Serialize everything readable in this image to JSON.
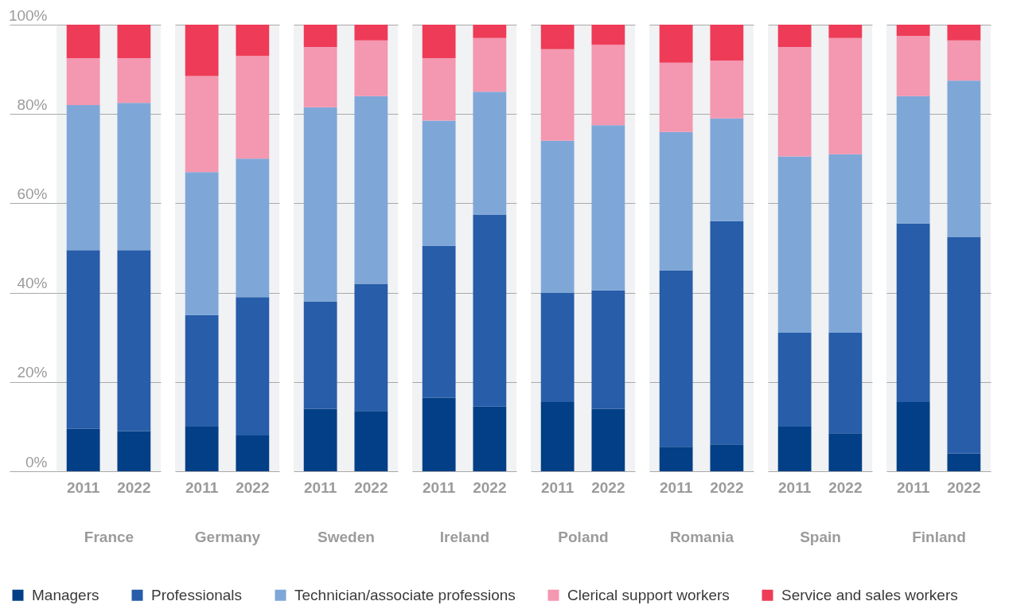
{
  "chart_data": [
    {
      "type": "bar",
      "stacked": true,
      "xlabel": "France",
      "categories": [
        "2011",
        "2022"
      ],
      "series": [
        {
          "name": "Managers",
          "color": "#023f86",
          "values": [
            9.5,
            9
          ]
        },
        {
          "name": "Professionals",
          "color": "#275da9",
          "values": [
            40,
            40.5
          ]
        },
        {
          "name": "Technician/associate professions",
          "color": "#7ea7d8",
          "values": [
            32.5,
            33
          ]
        },
        {
          "name": "Clerical support workers",
          "color": "#f497b0",
          "values": [
            10.5,
            10
          ]
        },
        {
          "name": "Service and sales workers",
          "color": "#ee3b57",
          "values": [
            7.5,
            7.5
          ]
        }
      ],
      "ylim": [
        0,
        100
      ],
      "yticks": [
        {
          "value": 0,
          "label": "0%"
        },
        {
          "value": 20,
          "label": "20%"
        },
        {
          "value": 40,
          "label": "40%"
        },
        {
          "value": 60,
          "label": "60%"
        },
        {
          "value": 80,
          "label": "80%"
        },
        {
          "value": 100,
          "label": "100%"
        }
      ],
      "grid": "y",
      "legend": "bottom"
    },
    {
      "type": "bar",
      "stacked": true,
      "xlabel": "Germany",
      "categories": [
        "2011",
        "2022"
      ],
      "series": [
        {
          "name": "Managers",
          "color": "#023f86",
          "values": [
            10,
            8
          ]
        },
        {
          "name": "Professionals",
          "color": "#275da9",
          "values": [
            25,
            31
          ]
        },
        {
          "name": "Technician/associate professions",
          "color": "#7ea7d8",
          "values": [
            32,
            31
          ]
        },
        {
          "name": "Clerical support workers",
          "color": "#f497b0",
          "values": [
            21.5,
            23
          ]
        },
        {
          "name": "Service and sales workers",
          "color": "#ee3b57",
          "values": [
            11.5,
            7
          ]
        }
      ],
      "ylim": [
        0,
        100
      ],
      "yticks": [
        0,
        20,
        40,
        60,
        80,
        100
      ],
      "grid": "y",
      "legend": "bottom",
      "tick_labels": "x"
    },
    {
      "type": "bar",
      "stacked": true,
      "xlabel": "Sweden",
      "categories": [
        "2011",
        "2022"
      ],
      "series": [
        {
          "name": "Managers",
          "color": "#023f86",
          "values": [
            14,
            13.5
          ]
        },
        {
          "name": "Professionals",
          "color": "#275da9",
          "values": [
            24,
            28.5
          ]
        },
        {
          "name": "Technician/associate professions",
          "color": "#7ea7d8",
          "values": [
            43.5,
            42
          ]
        },
        {
          "name": "Clerical support workers",
          "color": "#f497b0",
          "values": [
            13.5,
            12.5
          ]
        },
        {
          "name": "Service and sales workers",
          "color": "#ee3b57",
          "values": [
            5,
            3.5
          ]
        }
      ],
      "ylim": [
        0,
        100
      ],
      "yticks": [
        0,
        20,
        40,
        60,
        80,
        100
      ],
      "grid": "y",
      "legend": "bottom",
      "tick_labels": "x"
    },
    {
      "type": "bar",
      "stacked": true,
      "xlabel": "Ireland",
      "categories": [
        "2011",
        "2022"
      ],
      "series": [
        {
          "name": "Managers",
          "color": "#023f86",
          "values": [
            16.5,
            14.5
          ]
        },
        {
          "name": "Professionals",
          "color": "#275da9",
          "values": [
            34,
            43
          ]
        },
        {
          "name": "Technician/associate professions",
          "color": "#7ea7d8",
          "values": [
            28,
            27.5
          ]
        },
        {
          "name": "Clerical support workers",
          "color": "#f497b0",
          "values": [
            14,
            12
          ]
        },
        {
          "name": "Service and sales workers",
          "color": "#ee3b57",
          "values": [
            7.5,
            3
          ]
        }
      ],
      "ylim": [
        0,
        100
      ],
      "yticks": [
        0,
        20,
        40,
        60,
        80,
        100
      ],
      "grid": "y",
      "legend": "bottom",
      "tick_labels": "x"
    },
    {
      "type": "bar",
      "stacked": true,
      "xlabel": "Poland",
      "categories": [
        "2011",
        "2022"
      ],
      "series": [
        {
          "name": "Managers",
          "color": "#023f86",
          "values": [
            15.5,
            14
          ]
        },
        {
          "name": "Professionals",
          "color": "#275da9",
          "values": [
            24.5,
            26.5
          ]
        },
        {
          "name": "Technician/associate professions",
          "color": "#7ea7d8",
          "values": [
            34,
            37
          ]
        },
        {
          "name": "Clerical support workers",
          "color": "#f497b0",
          "values": [
            20.5,
            18
          ]
        },
        {
          "name": "Service and sales workers",
          "color": "#ee3b57",
          "values": [
            5.5,
            4.5
          ]
        }
      ],
      "ylim": [
        0,
        100
      ],
      "yticks": [
        0,
        20,
        40,
        60,
        80,
        100
      ],
      "grid": "y",
      "legend": "bottom",
      "tick_labels": "x"
    },
    {
      "type": "bar",
      "stacked": true,
      "xlabel": "Romania",
      "categories": [
        "2011",
        "2022"
      ],
      "series": [
        {
          "name": "Managers",
          "color": "#023f86",
          "values": [
            5.5,
            6
          ]
        },
        {
          "name": "Professionals",
          "color": "#275da9",
          "values": [
            39.5,
            50
          ]
        },
        {
          "name": "Technician/associate professions",
          "color": "#7ea7d8",
          "values": [
            31,
            23
          ]
        },
        {
          "name": "Clerical support workers",
          "color": "#f497b0",
          "values": [
            15.5,
            13
          ]
        },
        {
          "name": "Service and sales workers",
          "color": "#ee3b57",
          "values": [
            8.5,
            8
          ]
        }
      ],
      "ylim": [
        0,
        100
      ],
      "yticks": [
        0,
        20,
        40,
        60,
        80,
        100
      ],
      "grid": "y",
      "legend": "bottom",
      "tick_labels": "x"
    },
    {
      "type": "bar",
      "stacked": true,
      "xlabel": "Spain",
      "categories": [
        "2011",
        "2022"
      ],
      "series": [
        {
          "name": "Managers",
          "color": "#023f86",
          "values": [
            10,
            8.5
          ]
        },
        {
          "name": "Professionals",
          "color": "#275da9",
          "values": [
            21,
            22.5
          ]
        },
        {
          "name": "Technician/associate professions",
          "color": "#7ea7d8",
          "values": [
            39.5,
            40
          ]
        },
        {
          "name": "Clerical support workers",
          "color": "#f497b0",
          "values": [
            24.5,
            26
          ]
        },
        {
          "name": "Service and sales workers",
          "color": "#ee3b57",
          "values": [
            5,
            3
          ]
        }
      ],
      "ylim": [
        0,
        100
      ],
      "yticks": [
        0,
        20,
        40,
        60,
        80,
        100
      ],
      "grid": "y",
      "legend": "bottom",
      "tick_labels": "x"
    },
    {
      "type": "bar",
      "stacked": true,
      "xlabel": "Finland",
      "categories": [
        "2011",
        "2022"
      ],
      "series": [
        {
          "name": "Managers",
          "color": "#023f86",
          "values": [
            15.5,
            4
          ]
        },
        {
          "name": "Professionals",
          "color": "#275da9",
          "values": [
            40,
            48.5
          ]
        },
        {
          "name": "Technician/associate professions",
          "color": "#7ea7d8",
          "values": [
            28.5,
            35
          ]
        },
        {
          "name": "Clerical support workers",
          "color": "#f497b0",
          "values": [
            13.5,
            9
          ]
        },
        {
          "name": "Service and sales workers",
          "color": "#ee3b57",
          "values": [
            2.5,
            3.5
          ]
        }
      ],
      "ylim": [
        0,
        100
      ],
      "yticks": [
        0,
        20,
        40,
        60,
        80,
        100
      ],
      "grid": "y",
      "legend": "bottom",
      "tick_labels": "x"
    }
  ]
}
